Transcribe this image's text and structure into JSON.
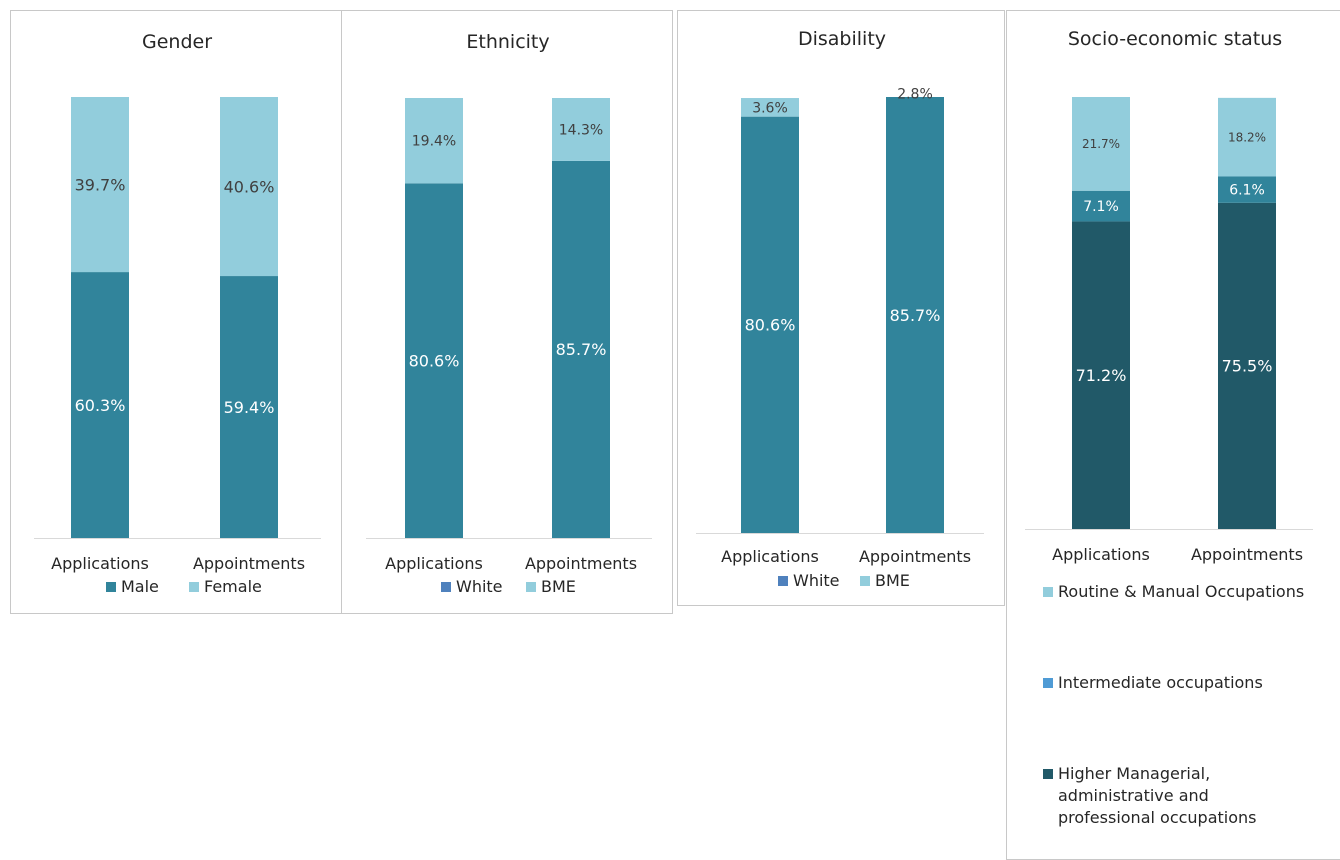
{
  "chart_data": [
    {
      "type": "bar",
      "stacked": true,
      "title": "Gender",
      "categories": [
        "Applications",
        "Appointments"
      ],
      "series": [
        {
          "name": "Male",
          "values": [
            60.3,
            59.4
          ],
          "labels": [
            "60.3%",
            "59.4%"
          ],
          "color": "#31849b"
        },
        {
          "name": "Female",
          "values": [
            39.7,
            40.6
          ],
          "labels": [
            "39.7%",
            "40.6%"
          ],
          "color": "#92cddc"
        }
      ],
      "ylim": [
        0,
        100
      ],
      "grid": false,
      "legend": "bottom"
    },
    {
      "type": "bar",
      "stacked": true,
      "title": "Ethnicity",
      "categories": [
        "Applications",
        "Appointments"
      ],
      "series": [
        {
          "name": "White",
          "values": [
            80.6,
            85.7
          ],
          "labels": [
            "80.6%",
            "85.7%"
          ],
          "color": "#31849b",
          "legend_color": "#4f81bd"
        },
        {
          "name": "BME",
          "values": [
            19.4,
            14.3
          ],
          "labels": [
            "19.4%",
            "14.3%"
          ],
          "color": "#92cddc"
        }
      ],
      "ylim": [
        0,
        100
      ],
      "grid": false,
      "legend": "bottom"
    },
    {
      "type": "bar",
      "stacked": true,
      "title": "Disability",
      "categories": [
        "Applications",
        "Appointments"
      ],
      "series": [
        {
          "name": "White",
          "values": [
            80.6,
            85.7
          ],
          "labels": [
            "80.6%",
            "85.7%"
          ],
          "color": "#31849b",
          "legend_color": "#4f81bd"
        },
        {
          "name": "BME",
          "values": [
            3.6,
            2.8
          ],
          "labels": [
            "3.6%",
            "2.8%"
          ],
          "color": "#92cddc"
        }
      ],
      "ylim": [
        0,
        84.4
      ],
      "grid": false,
      "legend": "bottom"
    },
    {
      "type": "bar",
      "stacked": true,
      "title": "Socio-economic status",
      "categories": [
        "Applications",
        "Appointments"
      ],
      "series": [
        {
          "name": "Higher Managerial, administrative and professional occupations",
          "values": [
            71.2,
            75.5
          ],
          "labels": [
            "71.2%",
            "75.5%"
          ],
          "color": "#215968"
        },
        {
          "name": "Intermediate occupations",
          "values": [
            7.1,
            6.1
          ],
          "labels": [
            "7.1%",
            "6.1%"
          ],
          "color": "#31849b",
          "legend_color": "#4f9bd5"
        },
        {
          "name": "Routine & Manual Occupations",
          "values": [
            21.7,
            18.2
          ],
          "labels": [
            "21.7%",
            "18.2%"
          ],
          "color": "#92cddc"
        }
      ],
      "ylim": [
        0,
        100
      ],
      "grid": false,
      "legend": "bottom"
    }
  ]
}
